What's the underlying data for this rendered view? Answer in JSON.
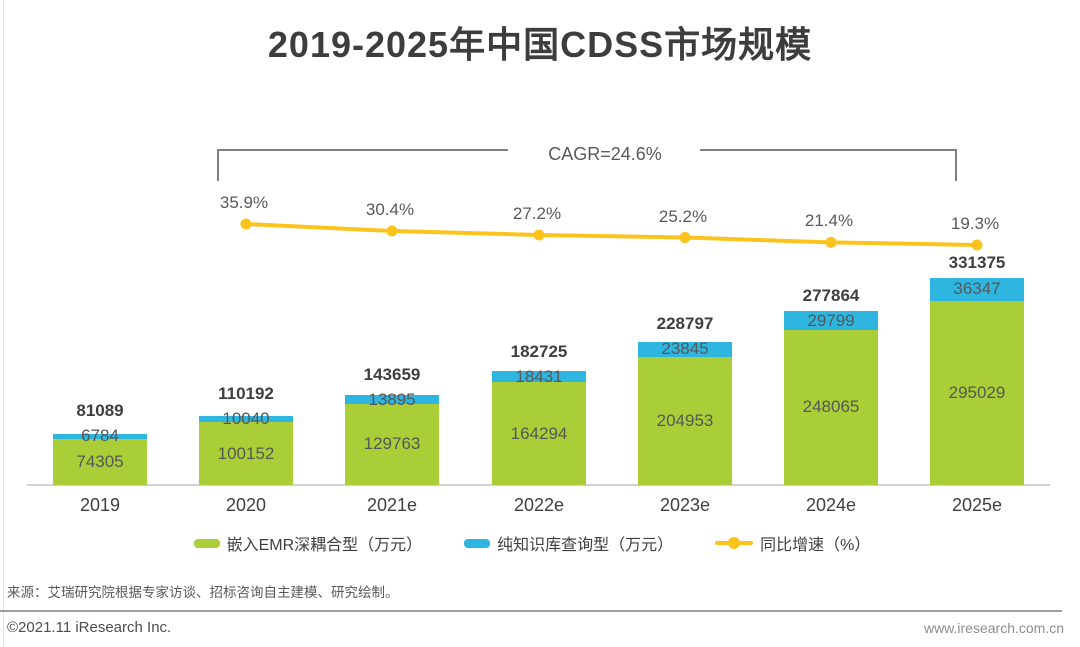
{
  "page": {
    "title": "2019-2025年中国CDSS市场规模",
    "source_note": "来源：艾瑞研究院根据专家访谈、招标咨询自主建模、研究绘制。",
    "footer_left": "©2021.11 iResearch Inc.",
    "footer_right": "www.iresearch.com.cn"
  },
  "chart_data": {
    "type": "bar",
    "subtype": "stacked-bar-with-growth-line",
    "title": "2019-2025年中国CDSS市场规模",
    "categories": [
      "2019",
      "2020",
      "2021e",
      "2022e",
      "2023e",
      "2024e",
      "2025e"
    ],
    "series": [
      {
        "name": "嵌入EMR深耦合型（万元）",
        "color": "#a9ce38",
        "values": [
          74305,
          100152,
          129763,
          164294,
          204953,
          248065,
          295029
        ]
      },
      {
        "name": "纯知识库查询型（万元）",
        "color": "#2eb6e0",
        "values": [
          6784,
          10040,
          13895,
          18431,
          23845,
          29799,
          36347
        ]
      }
    ],
    "totals": [
      81089,
      110192,
      143659,
      182725,
      228797,
      277864,
      331375
    ],
    "line_series": {
      "name": "同比增速（%）",
      "color": "#fcc31d",
      "x": [
        "2020",
        "2021e",
        "2022e",
        "2023e",
        "2024e",
        "2025e"
      ],
      "values": [
        35.9,
        30.4,
        27.2,
        25.2,
        21.4,
        19.3
      ],
      "labels": [
        "35.9%",
        "30.4%",
        "27.2%",
        "25.2%",
        "21.4%",
        "19.3%"
      ]
    },
    "annotation": "CAGR=24.6%",
    "unit": "万元",
    "legend_position": "bottom",
    "grid": false
  },
  "legend": {
    "items": [
      {
        "label": "嵌入EMR深耦合型（万元）",
        "swatch": "green-rect"
      },
      {
        "label": "纯知识库查询型（万元）",
        "swatch": "blue-rect"
      },
      {
        "label": "同比增速（%）",
        "swatch": "yellow-line-dot"
      }
    ]
  }
}
